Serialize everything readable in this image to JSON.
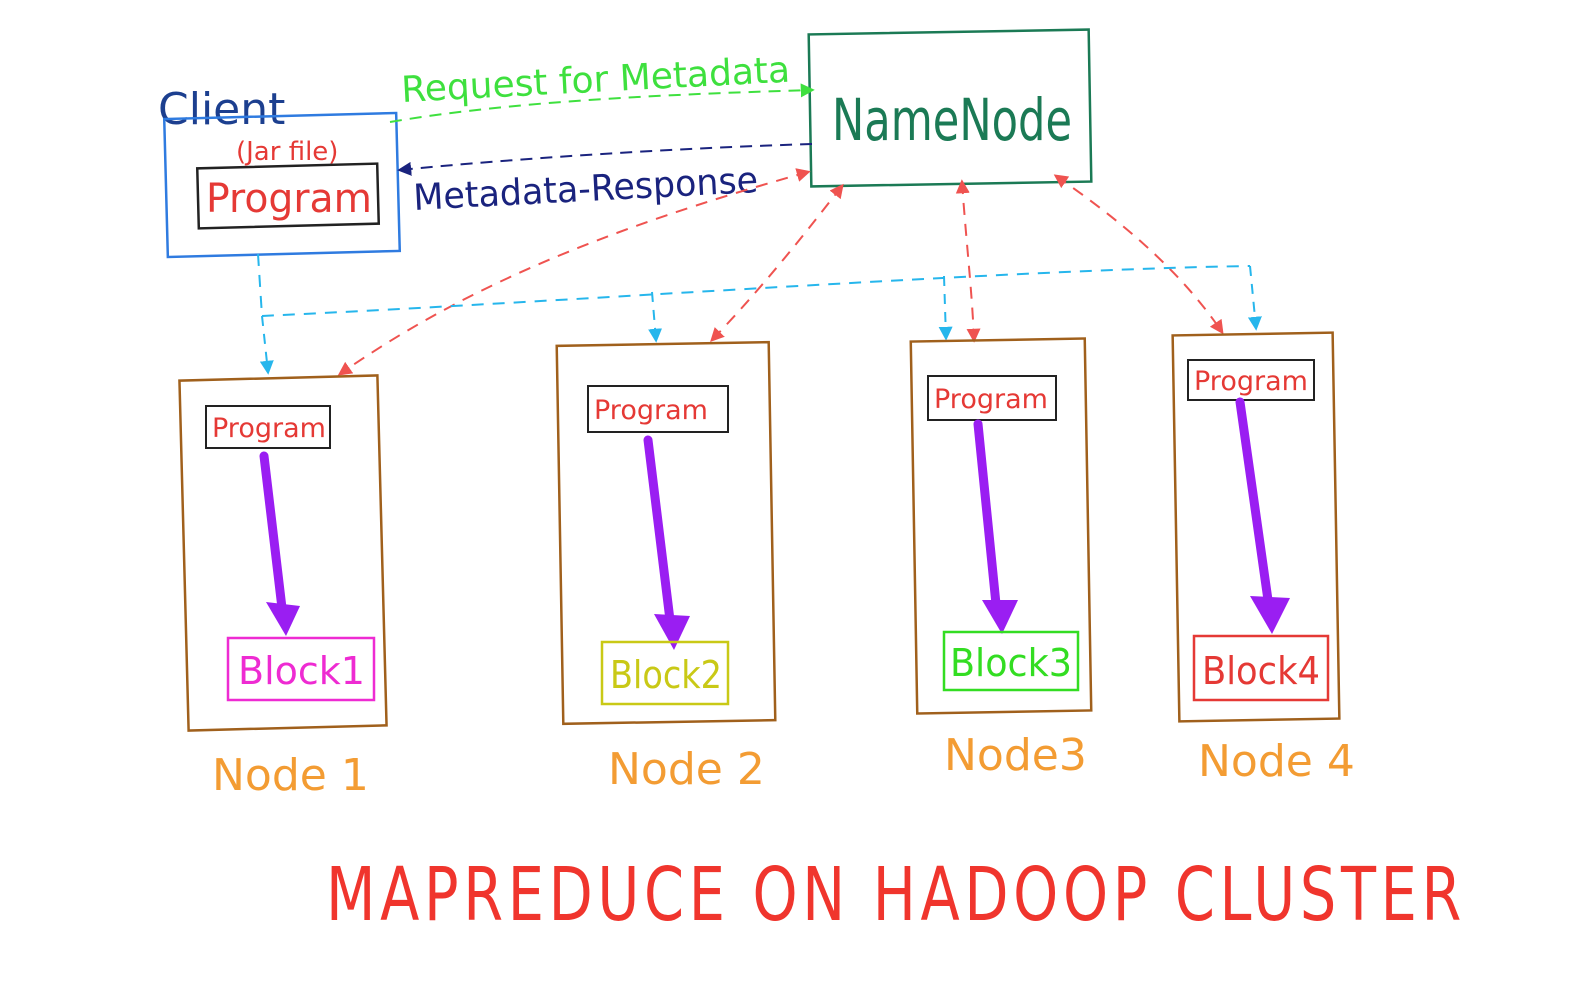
{
  "client": {
    "label": "Client",
    "jar_label": "(Jar file)",
    "program_label": "Program"
  },
  "namenode": {
    "label": "NameNode"
  },
  "arrows": {
    "request_label": "Request for Metadata",
    "response_label": "Metadata-Response"
  },
  "nodes": [
    {
      "name": "Node 1",
      "program": "Program",
      "block": "Block1",
      "block_color": "#ee2bd2"
    },
    {
      "name": "Node 2",
      "program": "Program",
      "block": "Block2",
      "block_color": "#c9c916"
    },
    {
      "name": "Node3",
      "program": "Program",
      "block": "Block3",
      "block_color": "#33dd22"
    },
    {
      "name": "Node 4",
      "program": "Program",
      "block": "Block4",
      "block_color": "#e53935"
    }
  ],
  "title": "MAPREDUCE ON HADOOP CLUSTER",
  "colors": {
    "client_border": "#2f7be0",
    "namenode_border": "#1b7a55",
    "node_border": "#a0601c",
    "program_box": "#222222",
    "program_text": "#e53935",
    "map_arrow": "#9a1ef2",
    "request_arrow": "#3ee03e",
    "response_arrow": "#1a237e",
    "namenode_link": "#ef5350",
    "client_link": "#26b6ec",
    "node_label": "#f39c33",
    "title": "#f0352d"
  }
}
